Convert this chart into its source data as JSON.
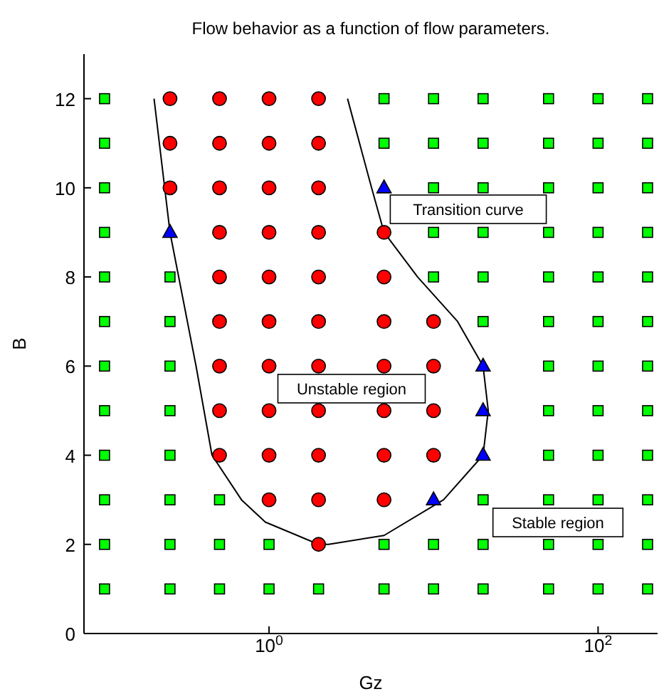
{
  "chart_data": {
    "type": "scatter",
    "title": "Flow behavior as a function of flow parameters.",
    "xlabel": "Gz",
    "ylabel": "B",
    "log": "x",
    "xlim": [
      0.075,
      230
    ],
    "xticks": [
      {
        "value": 1,
        "label": "10$^{0}$"
      },
      {
        "value": 100,
        "label": "10$^{2}$"
      }
    ],
    "ylim": [
      0,
      13
    ],
    "yticks": [
      0,
      2,
      4,
      6,
      8,
      10,
      12
    ],
    "grid": false,
    "series": [
      {
        "type": "line",
        "color": "#000000",
        "marker": "none",
        "x": [
          0.2,
          0.25,
          0.36,
          0.45,
          0.68,
          0.95,
          2,
          2.3,
          5,
          11.5,
          20,
          21.5,
          20,
          14,
          8,
          5,
          4.2,
          3
        ],
        "values": [
          12,
          9,
          6,
          4,
          3,
          2.5,
          2,
          2,
          2.2,
          3,
          4,
          5,
          6,
          7,
          8,
          9,
          10,
          12
        ]
      },
      {
        "color": "#ff0000",
        "marker": "circle",
        "x": [
          0.25,
          0.5,
          1,
          2,
          0.25,
          0.5,
          1,
          2,
          0.25,
          0.5,
          1,
          2,
          0.5,
          1,
          2,
          5,
          0.5,
          1,
          2,
          5,
          0.5,
          1,
          2,
          5,
          10,
          0.5,
          1,
          2,
          5,
          10,
          0.5,
          1,
          2,
          5,
          10,
          0.5,
          1,
          2,
          5,
          10,
          1,
          2,
          5,
          2
        ],
        "values": [
          12,
          12,
          12,
          12,
          11,
          11,
          11,
          11,
          10,
          10,
          10,
          10,
          9,
          9,
          9,
          9,
          8,
          8,
          8,
          8,
          7,
          7,
          7,
          7,
          7,
          6,
          6,
          6,
          6,
          6,
          5,
          5,
          5,
          5,
          5,
          4,
          4,
          4,
          4,
          4,
          3,
          3,
          3,
          2
        ]
      },
      {
        "color": "#0000ff",
        "marker": "triangle",
        "x": [
          5,
          0.25,
          20,
          20,
          20,
          10
        ],
        "values": [
          10,
          9,
          6,
          5,
          4,
          3
        ]
      },
      {
        "color": "#00ff00",
        "marker": "square",
        "x": [
          0.1,
          5,
          10,
          20,
          50,
          100,
          200,
          0.1,
          5,
          10,
          20,
          50,
          100,
          200,
          0.1,
          10,
          20,
          50,
          100,
          200,
          0.1,
          10,
          20,
          50,
          100,
          200,
          0.1,
          0.25,
          10,
          20,
          50,
          100,
          200,
          0.1,
          0.25,
          20,
          50,
          100,
          200,
          0.1,
          0.25,
          50,
          100,
          200,
          0.1,
          0.25,
          50,
          100,
          200,
          0.1,
          0.25,
          50,
          100,
          200,
          0.1,
          0.25,
          0.5,
          20,
          50,
          100,
          200,
          0.1,
          0.25,
          0.5,
          1,
          5,
          10,
          20,
          50,
          100,
          200,
          0.1,
          0.25,
          0.5,
          1,
          2,
          5,
          10,
          20,
          50,
          100,
          200
        ],
        "values": [
          12,
          12,
          12,
          12,
          12,
          12,
          12,
          11,
          11,
          11,
          11,
          11,
          11,
          11,
          10,
          10,
          10,
          10,
          10,
          10,
          9,
          9,
          9,
          9,
          9,
          9,
          8,
          8,
          8,
          8,
          8,
          8,
          8,
          7,
          7,
          7,
          7,
          7,
          7,
          6,
          6,
          6,
          6,
          6,
          5,
          5,
          5,
          5,
          5,
          4,
          4,
          4,
          4,
          4,
          3,
          3,
          3,
          3,
          3,
          3,
          3,
          2,
          2,
          2,
          2,
          2,
          2,
          2,
          2,
          2,
          2,
          1,
          1,
          1,
          1,
          1,
          1,
          1,
          1,
          1,
          1,
          1
        ]
      }
    ],
    "annotations": [
      "Transition curve",
      "Unstable region",
      "Stable region"
    ]
  }
}
